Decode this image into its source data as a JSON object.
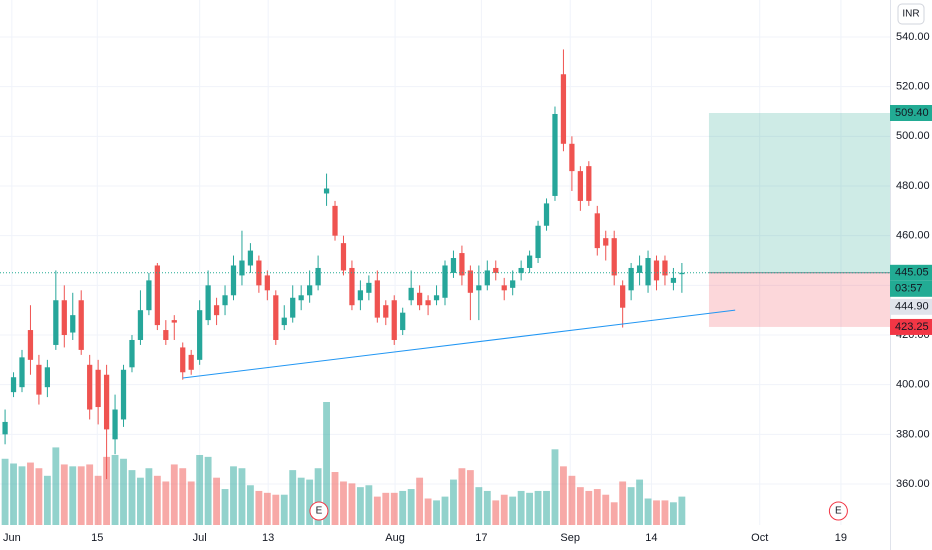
{
  "chart_data": {
    "type": "candlestick",
    "currency": "INR",
    "x": [
      0,
      1,
      2,
      3,
      4,
      5,
      6,
      7,
      8,
      9,
      10,
      11,
      12,
      13,
      14,
      15,
      16,
      17,
      18,
      19,
      20,
      21,
      22,
      23,
      24,
      25,
      26,
      27,
      28,
      29,
      30,
      31,
      32,
      33,
      34,
      35,
      36,
      37,
      38,
      39,
      40,
      41,
      42,
      43,
      44,
      45,
      46,
      47,
      48,
      49,
      50,
      51,
      52,
      53,
      54,
      55,
      56,
      57,
      58,
      59,
      60,
      61,
      62,
      63,
      64,
      65,
      66,
      67,
      68,
      69,
      70,
      71,
      72,
      73,
      74,
      75,
      76,
      77,
      78,
      79,
      80
    ],
    "open": [
      380,
      397,
      399,
      422,
      408,
      399,
      416,
      434,
      421,
      434,
      408,
      406,
      404,
      378,
      386,
      407,
      418,
      430,
      448,
      422,
      426,
      415,
      412,
      410,
      426,
      432,
      432,
      436,
      444,
      448,
      450,
      444,
      436,
      424,
      427,
      434,
      436,
      440,
      477,
      472,
      457,
      447,
      434,
      437,
      442,
      432,
      434,
      422,
      434,
      437,
      434,
      434,
      435,
      445,
      453,
      446,
      438,
      440,
      447,
      440,
      439,
      445,
      447,
      451,
      464,
      476,
      525,
      497,
      486,
      488,
      469,
      459,
      459,
      440,
      438,
      445,
      440,
      450,
      450,
      441,
      444.5
    ],
    "high": [
      390,
      405,
      414,
      432,
      412,
      410,
      446,
      440,
      437,
      438,
      412,
      410,
      408,
      396,
      408,
      420,
      438,
      445,
      449,
      426,
      428,
      417,
      414,
      434,
      446,
      435,
      440,
      452,
      462,
      457,
      452,
      446,
      438,
      432,
      440,
      440,
      446,
      452,
      485,
      474,
      460,
      450,
      442,
      444,
      446,
      434,
      436,
      431,
      446,
      440,
      436,
      440,
      450,
      454,
      456,
      448,
      448,
      450,
      450,
      443,
      446,
      450,
      454,
      466,
      475,
      512,
      535,
      500,
      488,
      490,
      472,
      462,
      462,
      442,
      449,
      452,
      454,
      452,
      452,
      447,
      449
    ],
    "low": [
      376,
      395,
      397,
      404,
      392,
      395,
      414,
      415,
      418,
      412,
      386,
      384,
      362,
      372,
      383,
      405,
      416,
      428,
      422,
      416,
      418,
      402,
      404,
      408,
      424,
      424,
      428,
      434,
      440,
      445,
      437,
      434,
      416,
      422,
      425,
      430,
      433,
      438,
      472,
      458,
      444,
      430,
      430,
      434,
      425,
      424,
      416,
      420,
      432,
      430,
      428,
      432,
      432,
      443,
      440,
      426,
      426,
      438,
      442,
      434,
      436,
      442,
      445,
      449,
      462,
      474,
      494,
      478,
      470,
      472,
      452,
      450,
      440,
      423,
      434,
      440,
      437,
      438,
      440,
      438,
      437
    ],
    "close": [
      385,
      403,
      411,
      410,
      396,
      407,
      434,
      420,
      428,
      414,
      390,
      391,
      382,
      390,
      406,
      418,
      430,
      442,
      424,
      418,
      425,
      405,
      406,
      430,
      440,
      428,
      436,
      448,
      450,
      454,
      440,
      438,
      418,
      427,
      435,
      436,
      440,
      447,
      479,
      460,
      446,
      432,
      438,
      441,
      427,
      427,
      418,
      429,
      439,
      432,
      432,
      436,
      448,
      451,
      444,
      437,
      440,
      446,
      445,
      438,
      442,
      447,
      452,
      464,
      473,
      509,
      497,
      486,
      474,
      474,
      455,
      456,
      444,
      431,
      447,
      448,
      451,
      442,
      444,
      443,
      445.05
    ],
    "volume": [
      70,
      65,
      62,
      66,
      60,
      52,
      82,
      64,
      62,
      62,
      64,
      52,
      72,
      74,
      70,
      58,
      50,
      60,
      52,
      46,
      64,
      60,
      46,
      74,
      72,
      50,
      38,
      62,
      60,
      42,
      36,
      34,
      32,
      32,
      58,
      50,
      48,
      60,
      130,
      56,
      46,
      44,
      40,
      42,
      30,
      34,
      34,
      36,
      38,
      50,
      28,
      26,
      30,
      48,
      60,
      58,
      40,
      36,
      26,
      32,
      30,
      36,
      34,
      36,
      36,
      80,
      62,
      52,
      40,
      36,
      38,
      32,
      24,
      46,
      40,
      48,
      28,
      26,
      26,
      24,
      30
    ],
    "up_color": "#26a69a",
    "down_color": "#ef5350",
    "xlim": [
      -0.6,
      104.6
    ],
    "ylim": [
      343.5,
      554.9
    ],
    "yticks": [
      {
        "value": 360,
        "label": "360.00"
      },
      {
        "value": 380,
        "label": "380.00"
      },
      {
        "value": 400,
        "label": "400.00"
      },
      {
        "value": 420,
        "label": "420.00"
      },
      {
        "value": 440,
        "label": "440.00"
      },
      {
        "value": 460,
        "label": "460.00"
      },
      {
        "value": 480,
        "label": "480.00"
      },
      {
        "value": 500,
        "label": "500.00"
      },
      {
        "value": 520,
        "label": "520.00"
      },
      {
        "value": 540,
        "label": "540.00"
      }
    ],
    "xticks": [
      {
        "value": 0.8,
        "label": "Jun"
      },
      {
        "value": 10.9,
        "label": "15"
      },
      {
        "value": 23,
        "label": "Jul"
      },
      {
        "value": 31.1,
        "label": "13"
      },
      {
        "value": 46.1,
        "label": "Aug"
      },
      {
        "value": 56.3,
        "label": "17"
      },
      {
        "value": 66.8,
        "label": "Sep"
      },
      {
        "value": 76.4,
        "label": "14"
      },
      {
        "value": 89.2,
        "label": "Oct"
      },
      {
        "value": 98.8,
        "label": "19"
      }
    ],
    "position": {
      "x": [
        83.2,
        104.6
      ],
      "target": 509.4,
      "entry": 445.05,
      "stop": 423.25
    },
    "trendline": {
      "x": [
        21,
        86.3
      ],
      "y": [
        402.7,
        430
      ]
    },
    "events": [
      {
        "x": 37.1,
        "label": "E"
      },
      {
        "x": 98.5,
        "label": "E"
      }
    ],
    "price_labels": [
      {
        "value": 509.4,
        "label": "509.40",
        "color": "#22ab94",
        "text_color": "#ffffff"
      },
      {
        "value": 445.05,
        "label": "445.05",
        "color": "#22ab94",
        "text_color": "#ffffff"
      },
      {
        "value": 444.9,
        "label": "444.90",
        "color": "#e0e3eb",
        "text_color": "#131722"
      },
      {
        "value": 423.25,
        "label": "423.25",
        "color": "#f23645",
        "text_color": "#ffffff"
      }
    ],
    "countdown": "03:57"
  }
}
